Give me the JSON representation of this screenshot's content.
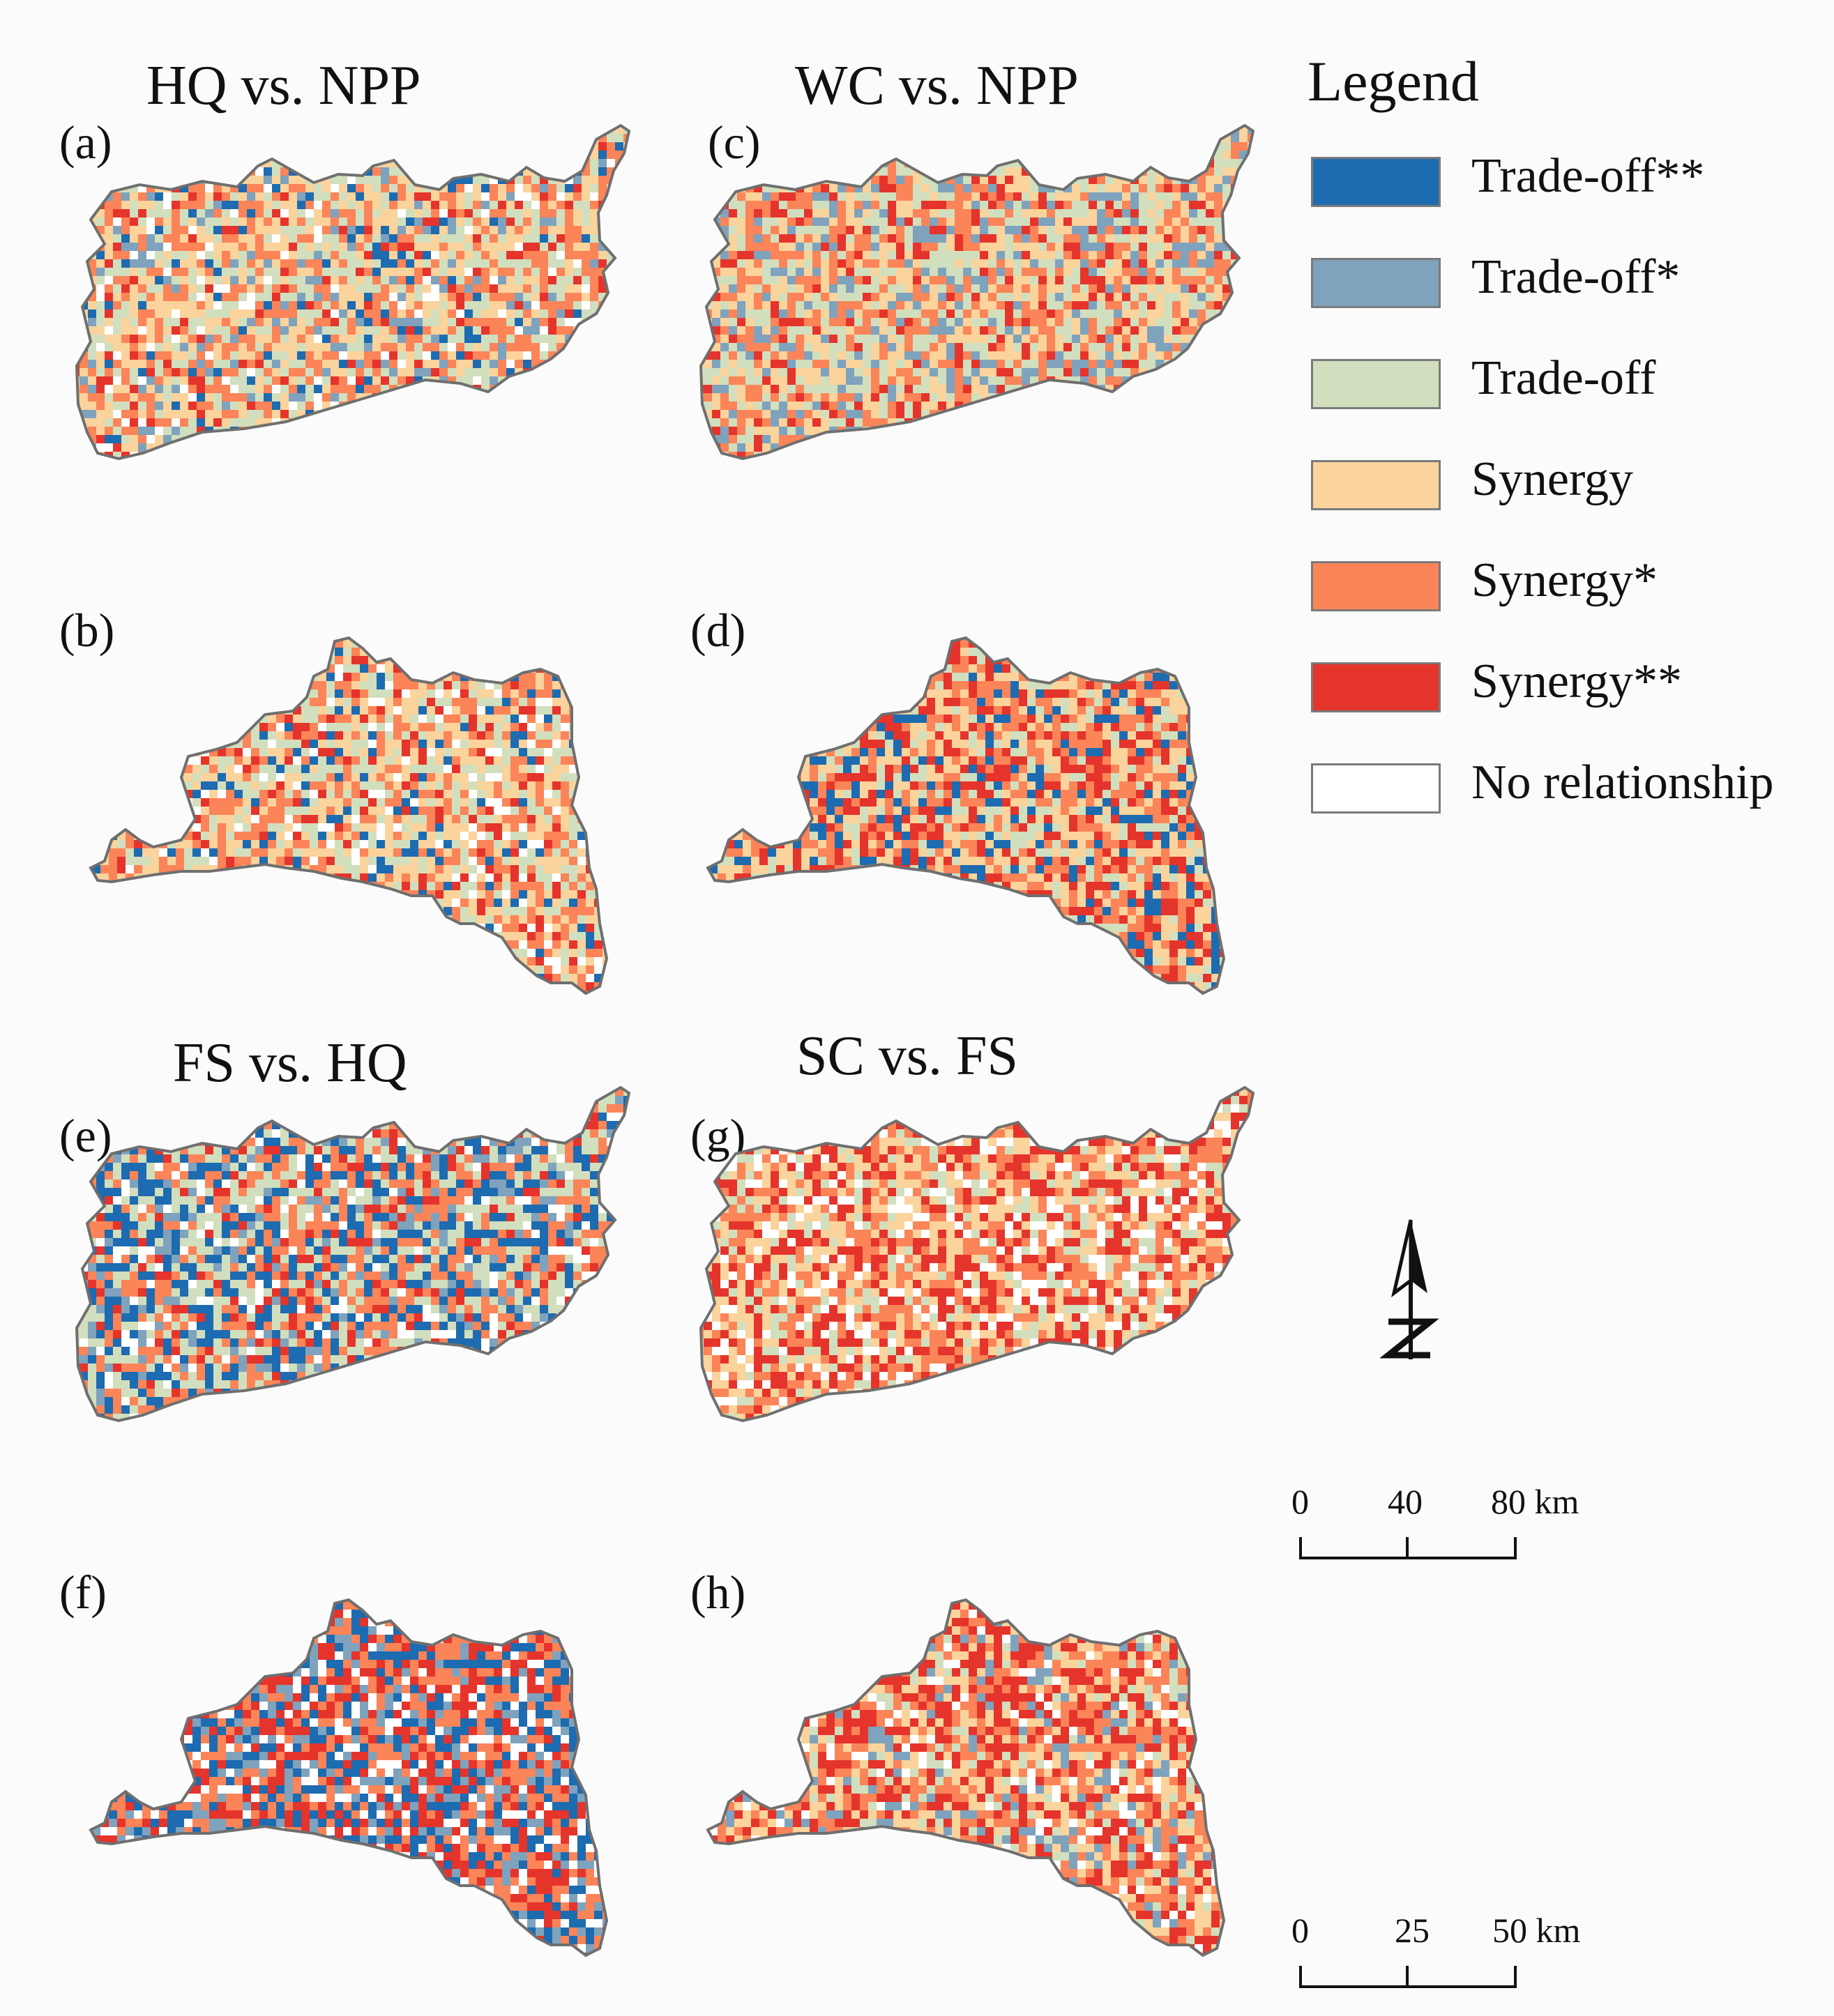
{
  "figure": {
    "panels": [
      {
        "label": "(a)",
        "title": "HQ vs. NPP"
      },
      {
        "label": "(b)",
        "title": ""
      },
      {
        "label": "(c)",
        "title": "WC vs. NPP"
      },
      {
        "label": "(d)",
        "title": ""
      },
      {
        "label": "(e)",
        "title": "FS vs. HQ"
      },
      {
        "label": "(f)",
        "title": ""
      },
      {
        "label": "(g)",
        "title": "SC vs. FS"
      },
      {
        "label": "(h)",
        "title": ""
      }
    ],
    "legend": {
      "title": "Legend",
      "items": [
        {
          "label": "Trade-off**",
          "color": "#1d6bb0"
        },
        {
          "label": "Trade-off*",
          "color": "#7fa2bd"
        },
        {
          "label": "Trade-off",
          "color": "#d2dfbe"
        },
        {
          "label": "Synergy",
          "color": "#fbd39c"
        },
        {
          "label": "Synergy*",
          "color": "#fb8458"
        },
        {
          "label": "Synergy**",
          "color": "#e5342b"
        },
        {
          "label": "No relationship",
          "color": "#ffffff"
        }
      ]
    },
    "north_arrow": {
      "icon": "north-arrow-icon",
      "letter": "N"
    },
    "scale_bars": [
      {
        "ticks": [
          "0",
          "40",
          "80 km"
        ]
      },
      {
        "ticks": [
          "0",
          "25",
          "50 km"
        ]
      }
    ],
    "map_patterns": {
      "a": {
        "dominant": [
          "#d2dfbe",
          "#fbd39c",
          "#fb8458"
        ],
        "minor": [
          "#1d6bb0",
          "#7fa2bd",
          "#e5342b",
          "#ffffff"
        ]
      },
      "b": {
        "dominant": [
          "#d2dfbe",
          "#fbd39c",
          "#fb8458"
        ],
        "minor": [
          "#e5342b",
          "#1d6bb0",
          "#ffffff"
        ]
      },
      "c": {
        "dominant": [
          "#fbd39c",
          "#d2dfbe",
          "#fb8458"
        ],
        "minor": [
          "#e5342b",
          "#7fa2bd"
        ]
      },
      "d": {
        "dominant": [
          "#fb8458",
          "#e5342b",
          "#fbd39c"
        ],
        "minor": [
          "#d2dfbe",
          "#1d6bb0"
        ]
      },
      "e": {
        "dominant": [
          "#1d6bb0",
          "#d2dfbe",
          "#fb8458"
        ],
        "minor": [
          "#7fa2bd",
          "#e5342b",
          "#ffffff"
        ]
      },
      "f": {
        "dominant": [
          "#1d6bb0",
          "#fb8458",
          "#e5342b"
        ],
        "minor": [
          "#7fa2bd",
          "#ffffff"
        ]
      },
      "g": {
        "dominant": [
          "#fb8458",
          "#fbd39c",
          "#e5342b"
        ],
        "minor": [
          "#d2dfbe",
          "#ffffff"
        ]
      },
      "h": {
        "dominant": [
          "#fbd39c",
          "#fb8458",
          "#e5342b"
        ],
        "minor": [
          "#d2dfbe",
          "#7fa2bd",
          "#ffffff"
        ]
      }
    }
  }
}
